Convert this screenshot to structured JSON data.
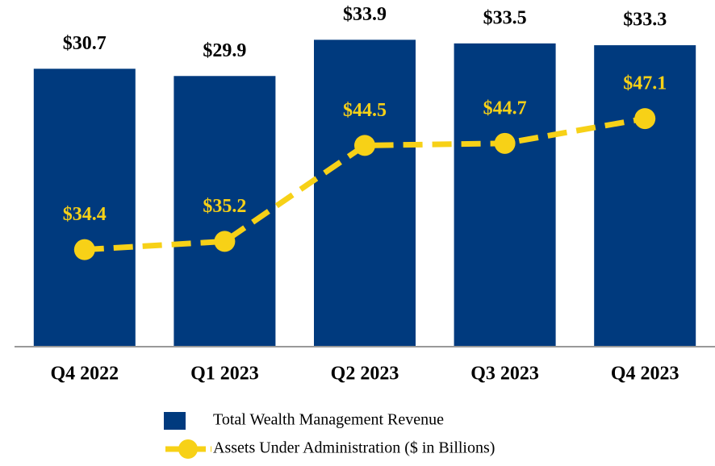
{
  "chart_data": {
    "type": "bar",
    "categories": [
      "Q4 2022",
      "Q1 2023",
      "Q2 2023",
      "Q3 2023",
      "Q4 2023"
    ],
    "series": [
      {
        "name": "Total Wealth Management Revenue",
        "type": "bar",
        "color": "#003a7e",
        "values": [
          30.7,
          29.9,
          33.9,
          33.5,
          33.3
        ],
        "value_labels": [
          "$30.7",
          "$29.9",
          "$33.9",
          "$33.5",
          "$33.3"
        ]
      },
      {
        "name": "Assets Under Administration ($ in Billions)",
        "type": "line",
        "axis": "y2",
        "color": "#f7d117",
        "values": [
          34.4,
          35.2,
          44.5,
          44.7,
          47.1
        ],
        "value_labels": [
          "$34.4",
          "$35.2",
          "$44.5",
          "$44.7",
          "$47.1"
        ]
      }
    ],
    "ylim": [
      0,
      35
    ],
    "y2lim": [
      25,
      55.7
    ],
    "legend": "bottom"
  }
}
